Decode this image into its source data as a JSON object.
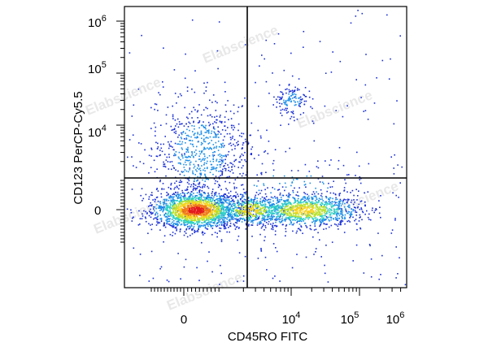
{
  "watermark": "Elabscience",
  "chart_data": {
    "type": "scatter",
    "title": "",
    "xlabel": "CD45RO FITC",
    "ylabel": "CD123 PerCP-Cy5.5",
    "scale": "biexponential",
    "grid": false,
    "legend": "none",
    "x_tick_labels": [
      {
        "base": "0",
        "exp": ""
      },
      {
        "base": "10",
        "exp": "4"
      },
      {
        "base": "10",
        "exp": "5"
      },
      {
        "base": "10",
        "exp": "6"
      }
    ],
    "y_tick_labels": [
      {
        "base": "10",
        "exp": "6"
      },
      {
        "base": "10",
        "exp": "5"
      },
      {
        "base": "10",
        "exp": "4"
      },
      {
        "base": "0",
        "exp": ""
      }
    ],
    "gates": {
      "x": 2000,
      "y": 1000
    },
    "populations": [
      {
        "name": "",
        "x": 300,
        "y": 0,
        "density": "high",
        "count": 1800
      },
      {
        "name": "",
        "x": 15000,
        "y": 0,
        "density": "medium",
        "count": 1100
      },
      {
        "name": "",
        "x": 2500,
        "y": 0,
        "density": "medium",
        "count": 500
      },
      {
        "name": "",
        "x": 400,
        "y": 3000,
        "density": "low",
        "count": 700
      },
      {
        "name": "",
        "x": 10000,
        "y": 30000,
        "density": "low",
        "count": 120
      },
      {
        "name": "",
        "x": 8000,
        "y": 400,
        "density": "low",
        "count": 200
      }
    ],
    "density_colors": [
      "#1a2fd6",
      "#1d8fe8",
      "#2ed1c4",
      "#b8e02a",
      "#f5d21c",
      "#f07a1a",
      "#e41a1c"
    ]
  }
}
